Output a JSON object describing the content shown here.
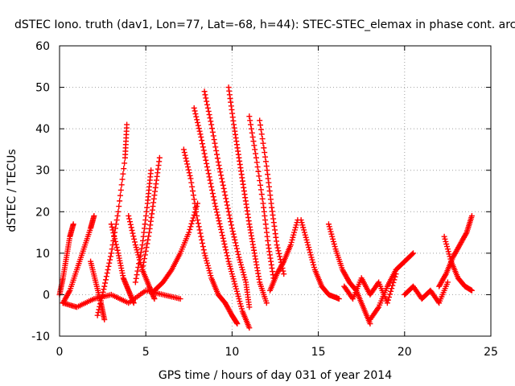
{
  "chart_data": {
    "type": "scatter",
    "title": "dSTEC Iono. truth (dav1, Lon=77, Lat=-68, h=44): STEC-STEC_elemax in phase cont. arc",
    "xlabel": "GPS time / hours of day 031 of year 2014",
    "ylabel": "dSTEC  / TECUs",
    "xlim": [
      0,
      25
    ],
    "ylim": [
      -10,
      60
    ],
    "xticks": [
      0,
      5,
      10,
      15,
      20,
      25
    ],
    "yticks": [
      -10,
      0,
      10,
      20,
      30,
      40,
      50,
      60
    ],
    "grid": true,
    "marker": "plus",
    "color": "#ff0000",
    "series": [
      {
        "x": [
          0.0,
          0.2,
          0.4,
          0.6,
          0.8
        ],
        "y": [
          0,
          4,
          9,
          14,
          17
        ]
      },
      {
        "x": [
          0.2,
          0.6,
          1.0,
          1.4,
          1.8,
          2.0
        ],
        "y": [
          -2,
          1,
          6,
          11,
          16,
          19
        ]
      },
      {
        "x": [
          1.8,
          2.1,
          2.4,
          2.6
        ],
        "y": [
          8,
          3,
          -2,
          -6
        ]
      },
      {
        "x": [
          2.2,
          2.6,
          3.0,
          3.4,
          3.8,
          3.9
        ],
        "y": [
          -5,
          2,
          10,
          20,
          33,
          41
        ]
      },
      {
        "x": [
          3.0,
          3.4,
          3.7,
          4.0,
          4.3
        ],
        "y": [
          17,
          10,
          4,
          1,
          -2
        ]
      },
      {
        "x": [
          4.0,
          4.4,
          4.8,
          5.2,
          5.5
        ],
        "y": [
          19,
          12,
          6,
          2,
          -1
        ]
      },
      {
        "x": [
          4.4,
          4.8,
          5.1,
          5.3
        ],
        "y": [
          3,
          12,
          22,
          30
        ]
      },
      {
        "x": [
          4.8,
          5.2,
          5.5,
          5.8
        ],
        "y": [
          6,
          15,
          24,
          33
        ]
      },
      {
        "x": [
          5.5,
          6.0,
          6.5,
          7.0,
          7.5,
          8.0
        ],
        "y": [
          1,
          3,
          6,
          10,
          15,
          22
        ]
      },
      {
        "x": [
          7.2,
          7.6,
          8.0,
          8.4,
          8.8,
          9.2,
          9.6,
          10.0,
          10.3
        ],
        "y": [
          35,
          28,
          18,
          10,
          4,
          0,
          -2,
          -5,
          -7
        ]
      },
      {
        "x": [
          7.8,
          8.2,
          8.6,
          9.0,
          9.4,
          9.8,
          10.2,
          10.6,
          11.0
        ],
        "y": [
          45,
          38,
          30,
          22,
          15,
          8,
          2,
          -4,
          -8
        ]
      },
      {
        "x": [
          8.4,
          8.8,
          9.2,
          9.6,
          10.0,
          10.4,
          10.8,
          11.0
        ],
        "y": [
          49,
          41,
          32,
          24,
          16,
          9,
          3,
          -3
        ]
      },
      {
        "x": [
          9.8,
          10.1,
          10.4,
          10.7,
          11.0,
          11.3,
          11.6,
          12.0
        ],
        "y": [
          50,
          41,
          33,
          25,
          17,
          10,
          3,
          -2
        ]
      },
      {
        "x": [
          11.0,
          11.4,
          11.8,
          12.1,
          12.4
        ],
        "y": [
          43,
          33,
          22,
          12,
          4
        ]
      },
      {
        "x": [
          11.6,
          12.0,
          12.3,
          12.6,
          13.0
        ],
        "y": [
          42,
          31,
          21,
          12,
          5
        ]
      },
      {
        "x": [
          12.2,
          12.6,
          13.0,
          13.4,
          13.8
        ],
        "y": [
          1,
          5,
          8,
          12,
          18
        ]
      },
      {
        "x": [
          14.0,
          14.4,
          14.8,
          15.2,
          15.6,
          16.2
        ],
        "y": [
          18,
          12,
          6,
          2,
          0,
          -1
        ]
      },
      {
        "x": [
          15.6,
          16.0,
          16.4,
          16.8,
          17.2,
          17.6,
          18.0
        ],
        "y": [
          17,
          11,
          6,
          3,
          1,
          -3,
          -7
        ]
      },
      {
        "x": [
          16.5,
          17.0,
          17.5,
          18.0,
          18.5,
          19.0,
          19.5
        ],
        "y": [
          2,
          -1,
          4,
          0,
          3,
          -2,
          5
        ]
      },
      {
        "x": [
          18.0,
          18.5,
          19.0,
          19.5,
          20.0,
          20.5
        ],
        "y": [
          -6,
          -3,
          2,
          6,
          8,
          10
        ]
      },
      {
        "x": [
          20.0,
          20.5,
          21.0,
          21.5,
          22.0,
          22.5
        ],
        "y": [
          0,
          2,
          -1,
          1,
          -2,
          3
        ]
      },
      {
        "x": [
          22.0,
          22.4,
          22.8,
          23.2,
          23.6,
          23.9
        ],
        "y": [
          2,
          5,
          9,
          12,
          15,
          19
        ]
      },
      {
        "x": [
          22.3,
          22.7,
          23.1,
          23.5,
          23.9
        ],
        "y": [
          14,
          8,
          4,
          2,
          1
        ]
      },
      {
        "x": [
          0.2,
          1.0,
          2.0,
          3.0,
          4.0,
          5.0,
          6.0,
          7.0
        ],
        "y": [
          -2,
          -3,
          -1,
          0,
          -2,
          1,
          0,
          -1
        ]
      }
    ]
  }
}
